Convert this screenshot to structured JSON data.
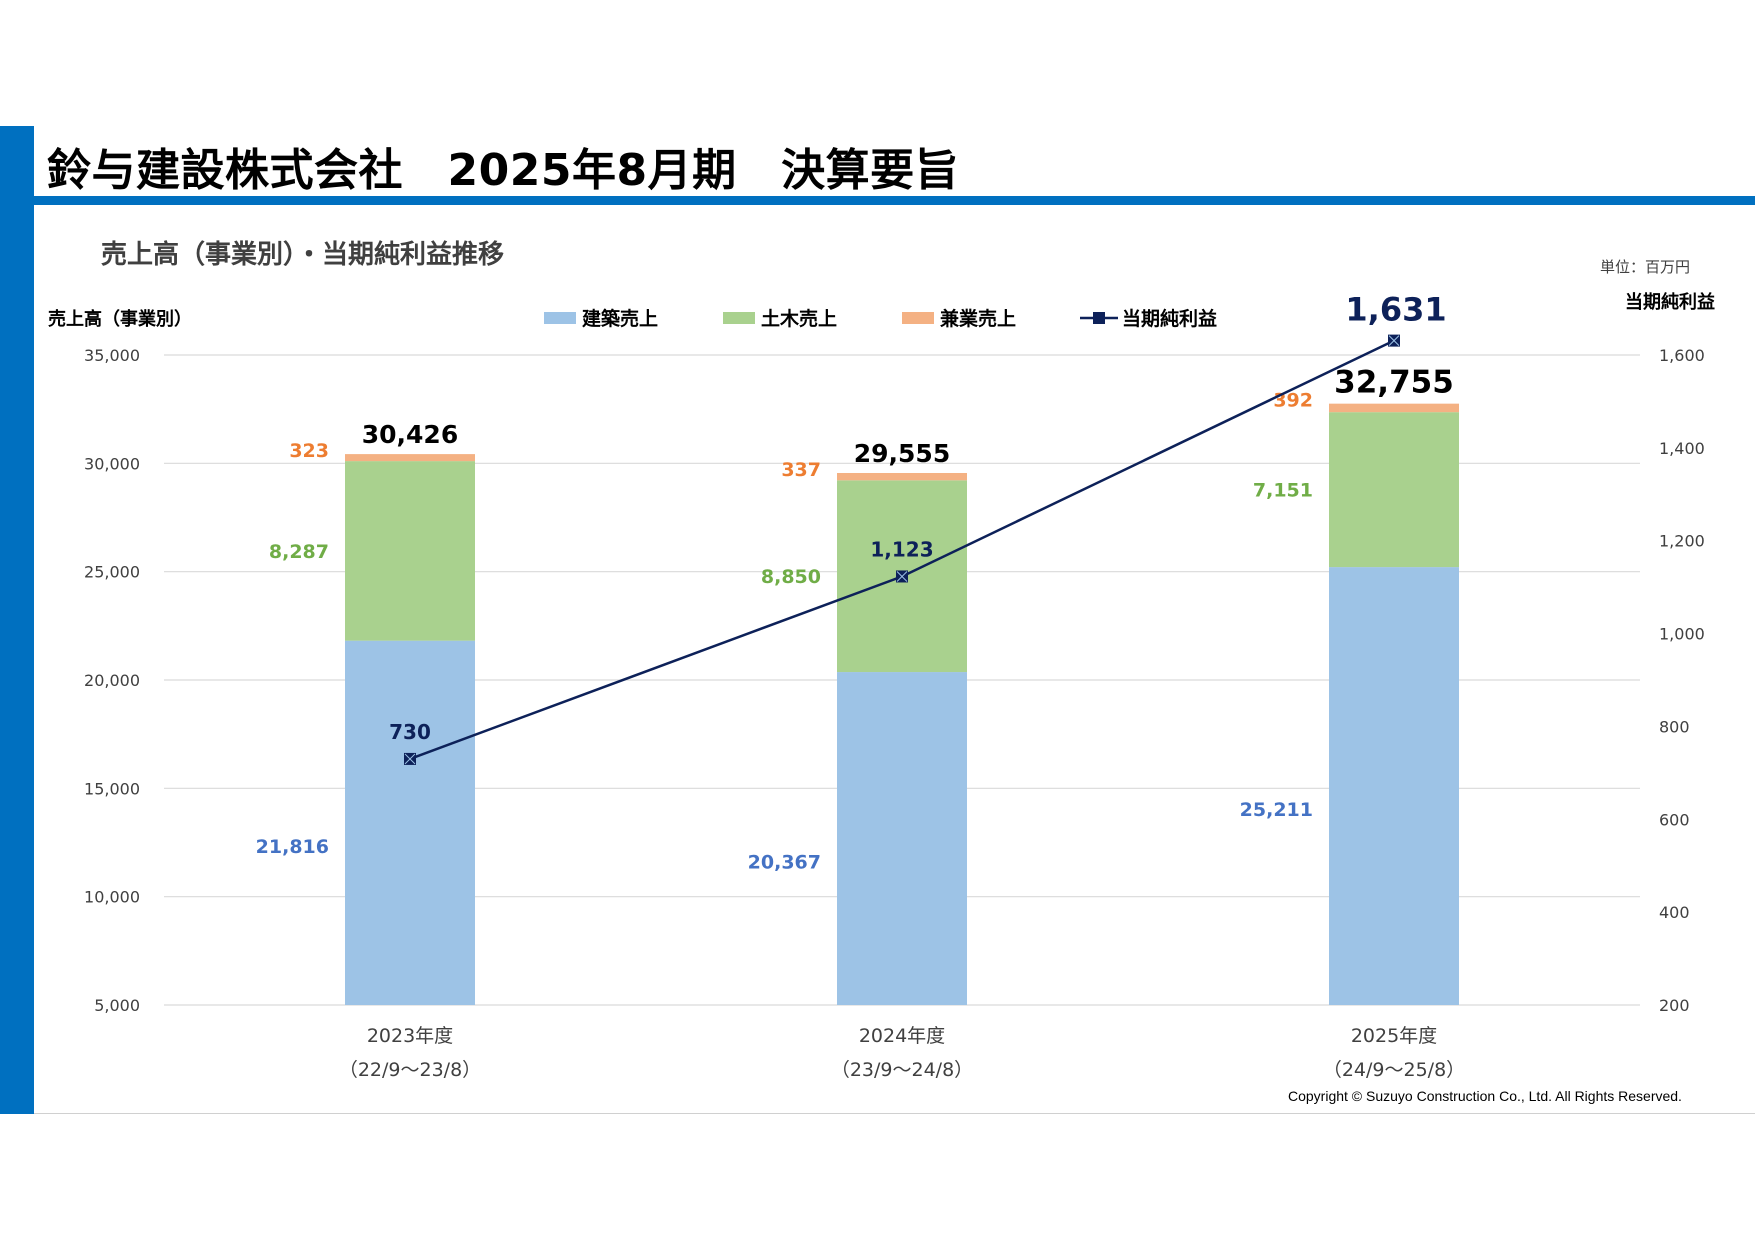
{
  "header": {
    "title": "鈴与建設株式会社　2025年8月期　決算要旨"
  },
  "section": {
    "subtitle": "売上高（事業別）・当期純利益推移",
    "unit": "単位：百万円"
  },
  "footer": {
    "copyright": "Copyright ©  Suzuyo Construction Co., Ltd. All Rights Reserved."
  },
  "colors": {
    "brand": "#0070c0",
    "building": "#9dc3e6",
    "civil": "#a9d18e",
    "other": "#f4b183",
    "profit_line": "#0d2159",
    "label_building": "#4472c4",
    "label_civil": "#70ad47",
    "label_other": "#ed7d31"
  },
  "chart_data": {
    "type": "bar",
    "stacked": true,
    "categories": [
      "2023年度",
      "2024年度",
      "2025年度"
    ],
    "category_sublabels": [
      "（22/9～23/8）",
      "（23/9～24/8）",
      "（24/9～25/8）"
    ],
    "series": [
      {
        "name": "建築売上",
        "values": [
          21816,
          20367,
          25211
        ],
        "labels": [
          "21,816",
          "20,367",
          "25,211"
        ]
      },
      {
        "name": "土木売上",
        "values": [
          8287,
          8850,
          7151
        ],
        "labels": [
          "8,287",
          "8,850",
          "7,151"
        ]
      },
      {
        "name": "兼業売上",
        "values": [
          323,
          337,
          392
        ],
        "labels": [
          "323",
          "337",
          "392"
        ]
      }
    ],
    "totals": [
      30426,
      29555,
      32755
    ],
    "total_labels": [
      "30,426",
      "29,555",
      "32,755"
    ],
    "line_series": {
      "name": "当期純利益",
      "axis": "right",
      "values": [
        730,
        1123,
        1631
      ],
      "labels": [
        "730",
        "1,123",
        "1,631"
      ]
    },
    "ylabel": "売上高（事業別）",
    "ylabel_right": "当期純利益",
    "ylim": [
      5000,
      35000
    ],
    "yticks": [
      5000,
      10000,
      15000,
      20000,
      25000,
      30000,
      35000
    ],
    "ytick_labels": [
      "5,000",
      "10,000",
      "15,000",
      "20,000",
      "25,000",
      "30,000",
      "35,000"
    ],
    "ylim_right": [
      200,
      1600
    ],
    "yticks_right": [
      200,
      400,
      600,
      800,
      1000,
      1200,
      1400,
      1600
    ],
    "ytick_labels_right": [
      "200",
      "400",
      "600",
      "800",
      "1,000",
      "1,200",
      "1,400",
      "1,600"
    ],
    "legend": [
      "建築売上",
      "土木売上",
      "兼業売上",
      "当期純利益"
    ],
    "grid": true
  }
}
